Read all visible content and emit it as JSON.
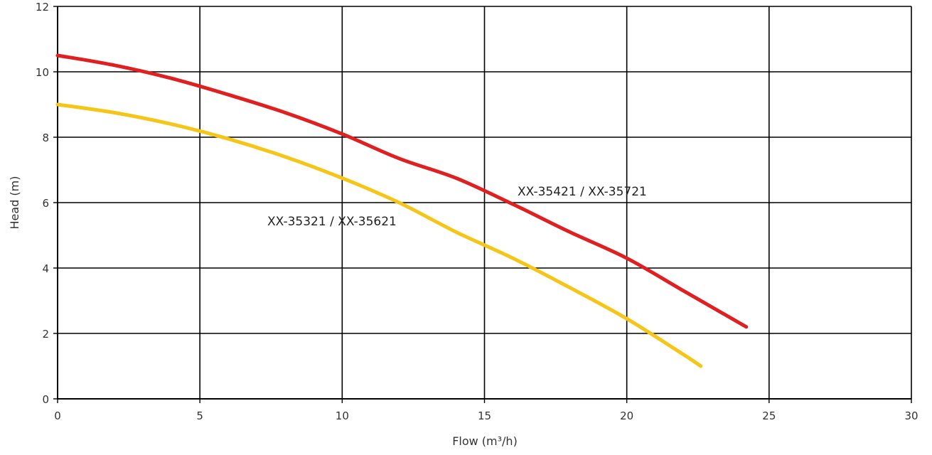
{
  "chart_data": {
    "type": "line",
    "title": "",
    "xlabel": "Flow (m³/h)",
    "ylabel": "Head (m)",
    "xlim": [
      0,
      30
    ],
    "ylim": [
      0,
      12
    ],
    "xticks": [
      0,
      5,
      10,
      15,
      20,
      25,
      30
    ],
    "yticks": [
      0,
      2,
      4,
      6,
      8,
      10,
      12
    ],
    "grid": true,
    "legend": "none",
    "series": [
      {
        "name": "XX-35421 / XX-35721",
        "color": "#e02020",
        "x": [
          0,
          2,
          4,
          6,
          8,
          10,
          12,
          14,
          16,
          18,
          20,
          22,
          24.2
        ],
        "y": [
          10.5,
          10.2,
          9.8,
          9.3,
          8.75,
          8.1,
          7.35,
          6.75,
          5.95,
          5.1,
          4.3,
          3.3,
          2.2
        ]
      },
      {
        "name": "XX-35321 / XX-35621",
        "color": "#f5c518",
        "x": [
          0,
          2,
          4,
          6,
          8,
          10,
          12,
          14,
          16,
          18,
          20,
          22,
          22.6
        ],
        "y": [
          9.0,
          8.75,
          8.4,
          7.95,
          7.4,
          6.75,
          6.0,
          5.1,
          4.3,
          3.4,
          2.45,
          1.35,
          1.0
        ]
      }
    ]
  }
}
